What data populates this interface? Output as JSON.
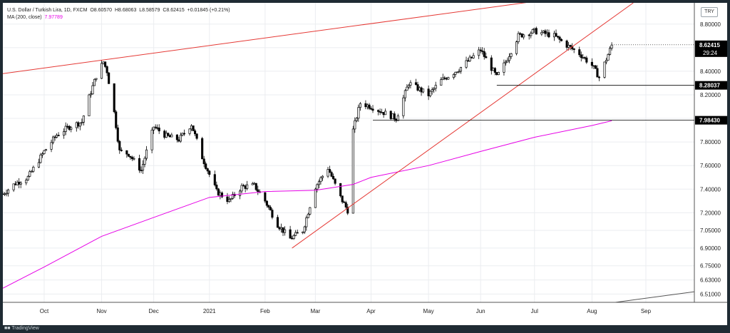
{
  "legend": {
    "title": "U.S. Dollar / Turkish Lira, 1D, FXCM",
    "open_label": "O",
    "open": "8.60570",
    "high_label": "H",
    "high": "8.68063",
    "low_label": "L",
    "low": "8.58579",
    "close_label": "C",
    "close": "8.62415",
    "change": "+0.01845 (+0.21%)",
    "ma_label": "MA (200, close)",
    "ma_value": "7.97789"
  },
  "currency": "TRY",
  "footer": {
    "brand": "TradingView"
  },
  "colors": {
    "trendline": "#e53935",
    "ma": "#e600e6",
    "badge_bg": "#000000",
    "badge_text": "#ffffff",
    "grid": "#ebedf0"
  },
  "chart_data": {
    "type": "candlestick",
    "ylim": [
      6.44,
      8.98
    ],
    "x_range": [
      "2020-09-08",
      "2021-09-28"
    ],
    "y_ticks": [
      "8.80000",
      "8.60000",
      "8.40000",
      "8.20000",
      "8.00000",
      "7.80000",
      "7.60000",
      "7.40000",
      "7.20000",
      "7.05000",
      "6.90000",
      "6.75000",
      "6.63000",
      "6.51000"
    ],
    "x_ticks": [
      {
        "label": "Oct",
        "date": "2020-10-01"
      },
      {
        "label": "Nov",
        "date": "2020-11-02"
      },
      {
        "label": "Dec",
        "date": "2020-12-01"
      },
      {
        "label": "2021",
        "date": "2021-01-01"
      },
      {
        "label": "Feb",
        "date": "2021-02-01"
      },
      {
        "label": "Mar",
        "date": "2021-03-01"
      },
      {
        "label": "Apr",
        "date": "2021-04-01"
      },
      {
        "label": "May",
        "date": "2021-05-03"
      },
      {
        "label": "Jun",
        "date": "2021-06-01"
      },
      {
        "label": "Jul",
        "date": "2021-07-01"
      },
      {
        "label": "Aug",
        "date": "2021-08-02"
      },
      {
        "label": "Sep",
        "date": "2021-09-01"
      }
    ],
    "close_path": [
      [
        "2020-09-08",
        7.36
      ],
      [
        "2020-09-15",
        7.45
      ],
      [
        "2020-09-22",
        7.5
      ],
      [
        "2020-10-01",
        7.72
      ],
      [
        "2020-10-08",
        7.86
      ],
      [
        "2020-10-15",
        7.93
      ],
      [
        "2020-10-22",
        7.97
      ],
      [
        "2020-10-26",
        8.18
      ],
      [
        "2020-10-30",
        8.36
      ],
      [
        "2020-11-03",
        8.48
      ],
      [
        "2020-11-05",
        8.4
      ],
      [
        "2020-11-09",
        8.05
      ],
      [
        "2020-11-12",
        7.72
      ],
      [
        "2020-11-17",
        7.7
      ],
      [
        "2020-11-24",
        7.56
      ],
      [
        "2020-12-01",
        7.93
      ],
      [
        "2020-12-08",
        7.85
      ],
      [
        "2020-12-15",
        7.82
      ],
      [
        "2020-12-22",
        7.95
      ],
      [
        "2020-12-28",
        7.67
      ],
      [
        "2021-01-05",
        7.38
      ],
      [
        "2021-01-12",
        7.3
      ],
      [
        "2021-01-19",
        7.42
      ],
      [
        "2021-01-26",
        7.43
      ],
      [
        "2021-02-01",
        7.3
      ],
      [
        "2021-02-08",
        7.1
      ],
      [
        "2021-02-15",
        6.98
      ],
      [
        "2021-02-22",
        7.05
      ],
      [
        "2021-03-01",
        7.42
      ],
      [
        "2021-03-08",
        7.58
      ],
      [
        "2021-03-15",
        7.33
      ],
      [
        "2021-03-19",
        7.22
      ],
      [
        "2021-03-22",
        7.9
      ],
      [
        "2021-03-26",
        8.13
      ],
      [
        "2021-04-01",
        8.1
      ],
      [
        "2021-04-08",
        8.05
      ],
      [
        "2021-04-15",
        8.0
      ],
      [
        "2021-04-22",
        8.3
      ],
      [
        "2021-05-03",
        8.2
      ],
      [
        "2021-05-10",
        8.32
      ],
      [
        "2021-05-20",
        8.42
      ],
      [
        "2021-06-01",
        8.58
      ],
      [
        "2021-06-10",
        8.35
      ],
      [
        "2021-06-15",
        8.48
      ],
      [
        "2021-06-22",
        8.7
      ],
      [
        "2021-07-01",
        8.74
      ],
      [
        "2021-07-12",
        8.7
      ],
      [
        "2021-07-19",
        8.62
      ],
      [
        "2021-07-26",
        8.55
      ],
      [
        "2021-08-02",
        8.45
      ],
      [
        "2021-08-06",
        8.35
      ],
      [
        "2021-08-13",
        8.62
      ]
    ],
    "ma_path": [
      [
        "2020-09-08",
        6.56
      ],
      [
        "2020-10-01",
        6.74
      ],
      [
        "2020-11-02",
        7.0
      ],
      [
        "2020-12-01",
        7.16
      ],
      [
        "2021-01-01",
        7.33
      ],
      [
        "2021-02-01",
        7.38
      ],
      [
        "2021-03-01",
        7.39
      ],
      [
        "2021-03-22",
        7.44
      ],
      [
        "2021-04-01",
        7.5
      ],
      [
        "2021-05-03",
        7.6
      ],
      [
        "2021-06-01",
        7.72
      ],
      [
        "2021-07-01",
        7.84
      ],
      [
        "2021-08-02",
        7.94
      ],
      [
        "2021-08-13",
        7.98
      ]
    ],
    "trendlines": [
      {
        "name": "upper-resistance",
        "from": [
          "2020-09-08",
          8.38
        ],
        "to": [
          "2021-06-30",
          8.99
        ]
      },
      {
        "name": "rising-support",
        "from": [
          "2021-02-16",
          6.9
        ],
        "to": [
          "2021-08-25",
          8.98
        ]
      },
      {
        "name": "lower-right",
        "from": [
          "2021-08-15",
          6.44
        ],
        "to": [
          "2021-09-28",
          6.53
        ]
      }
    ],
    "horizontal_levels": [
      {
        "value": 8.28037,
        "label": "8.28037",
        "from": "2021-06-10"
      },
      {
        "value": 7.9843,
        "label": "7.98430",
        "from": "2021-04-02"
      }
    ],
    "last_price": {
      "value": 8.62415,
      "label": "8.62415",
      "countdown": "29:24"
    }
  }
}
